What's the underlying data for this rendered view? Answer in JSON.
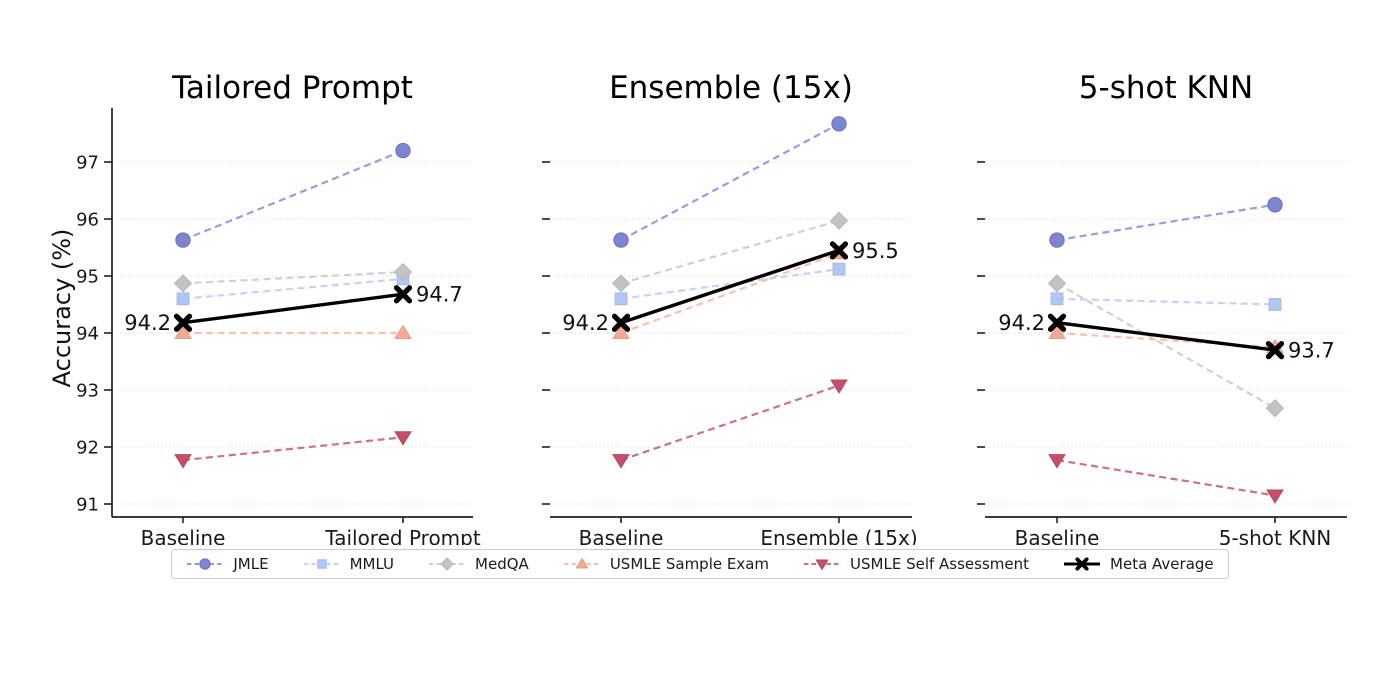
{
  "chart_data": {
    "type": "line",
    "ylabel": "Accuracy (%)",
    "yticks": [
      91,
      92,
      93,
      94,
      95,
      96,
      97
    ],
    "ylim": [
      90.8,
      97.8
    ],
    "grid": true,
    "legend_position": "bottom",
    "x_points_per_panel": 2,
    "series_defs": [
      {
        "name": "JMLE",
        "marker": "circle",
        "color": "#7e85d0",
        "edge_color": "#6970c5",
        "line_color": "#979ddc",
        "dashed": true
      },
      {
        "name": "MMLU",
        "marker": "square",
        "color": "#b2c6f2",
        "edge_color": "#a2b8ee",
        "line_color": "#c3d2f5",
        "dashed": true
      },
      {
        "name": "MedQA",
        "marker": "diamond",
        "color": "#c3c3c3",
        "edge_color": "#b6b6b6",
        "line_color": "#d0d0d0",
        "dashed": true
      },
      {
        "name": "USMLE Sample Exam",
        "marker": "triangle-up",
        "color": "#f2aa92",
        "edge_color": "#eb9c85",
        "line_color": "#f6c3b1",
        "dashed": true
      },
      {
        "name": "USMLE Self Assessment",
        "marker": "triangle-down",
        "color": "#c25069",
        "edge_color": "#b74760",
        "line_color": "#cd7186",
        "dashed": true
      },
      {
        "name": "Meta Average",
        "marker": "x",
        "color": "#000000",
        "edge_color": "#000000",
        "line_color": "#000000",
        "dashed": false
      }
    ],
    "panels": [
      {
        "title": "Tailored Prompt",
        "categories": [
          "Baseline",
          "Tailored Prompt"
        ],
        "show_ytick_labels": true,
        "values": {
          "JMLE": [
            95.63,
            97.2
          ],
          "MMLU": [
            94.6,
            94.95
          ],
          "MedQA": [
            94.87,
            95.07
          ],
          "USMLE Sample Exam": [
            94.0,
            94.0
          ],
          "USMLE Self Assessment": [
            91.77,
            92.17
          ],
          "Meta Average": [
            94.18,
            94.68
          ]
        },
        "annotations": {
          "start": "94.2",
          "end": "94.7"
        }
      },
      {
        "title": "Ensemble (15x)",
        "categories": [
          "Baseline",
          "Ensemble (15x)"
        ],
        "show_ytick_labels": false,
        "values": {
          "JMLE": [
            95.63,
            97.67
          ],
          "MMLU": [
            94.6,
            95.12
          ],
          "MedQA": [
            94.87,
            95.97
          ],
          "USMLE Sample Exam": [
            94.0,
            95.4
          ],
          "USMLE Self Assessment": [
            91.77,
            93.08
          ],
          "Meta Average": [
            94.18,
            95.45
          ]
        },
        "annotations": {
          "start": "94.2",
          "end": "95.5"
        }
      },
      {
        "title": "5-shot KNN",
        "categories": [
          "Baseline",
          "5-shot KNN"
        ],
        "show_ytick_labels": false,
        "values": {
          "JMLE": [
            95.63,
            96.25
          ],
          "MMLU": [
            94.6,
            94.5
          ],
          "MedQA": [
            94.87,
            92.68
          ],
          "USMLE Sample Exam": [
            94.0,
            93.75
          ],
          "USMLE Self Assessment": [
            91.77,
            91.15
          ],
          "Meta Average": [
            94.18,
            93.7
          ]
        },
        "annotations": {
          "start": "94.2",
          "end": "93.7"
        }
      }
    ],
    "style_colors": {
      "grid": "#dcdcdc",
      "axis": "#1f1f1f",
      "tick_label": "#1a1a1a",
      "title": "#000000",
      "annotation": "#111111"
    }
  }
}
